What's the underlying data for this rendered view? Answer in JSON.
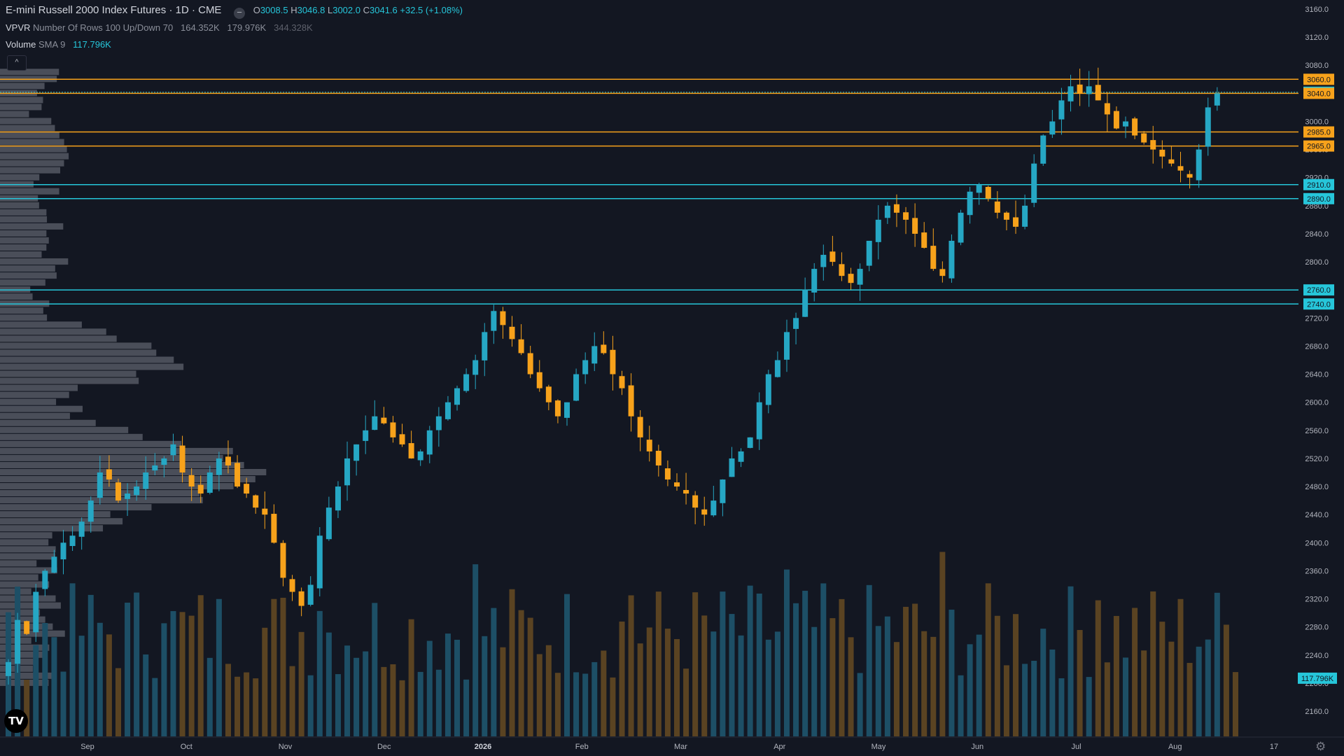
{
  "legend": {
    "title": "E-mini Russell 2000 Index Futures · 1D · CME",
    "o_label": "O",
    "o_value": "3008.5",
    "h_label": "H",
    "h_value": "3046.8",
    "l_label": "L",
    "l_value": "3002.0",
    "c_label": "C",
    "c_value": "3041.6",
    "change": "+32.5 (+1.08%)",
    "vpvr_name": "VPVR",
    "vpvr_params": "Number Of Rows 100 Up/Down 70",
    "vpvr_v1": "164.352K",
    "vpvr_v2": "179.976K",
    "vpvr_v3": "344.328K",
    "volume_name": "Volume",
    "volume_params": "SMA 9",
    "volume_value": "117.796K",
    "collapse_icon": "^"
  },
  "logo_text": "TV",
  "colors": {
    "background": "#131722",
    "up": "#26a7c4",
    "down": "#f7a21b",
    "cyan_level": "#26c6da",
    "orange_level": "#f7a21b",
    "vol_up": "#1d4f66",
    "vol_down": "#5a4322",
    "vpvr": "#787b86"
  },
  "chart_data": {
    "type": "candlestick",
    "symbol": "E-mini Russell 2000 Index Futures",
    "interval": "1D",
    "y_ticks": [
      "3160.0",
      "3120.0",
      "3080.0",
      "3040.0",
      "3000.0",
      "2960.0",
      "2920.0",
      "2880.0",
      "2840.0",
      "2800.0",
      "2760.0",
      "2720.0",
      "2680.0",
      "2640.0",
      "2600.0",
      "2560.0",
      "2520.0",
      "2480.0",
      "2440.0",
      "2400.0",
      "2360.0",
      "2320.0",
      "2280.0",
      "2240.0",
      "2200.0",
      "2160.0"
    ],
    "x_ticks": [
      "Sep",
      "Oct",
      "Nov",
      "Dec",
      "2026",
      "Feb",
      "Mar",
      "Apr",
      "May",
      "Jun",
      "Jul",
      "Aug",
      "17"
    ],
    "ylim": [
      2120,
      3175
    ],
    "price_levels": [
      {
        "price": 3060.0,
        "label": "3060.0",
        "color": "orange"
      },
      {
        "price": 3041.6,
        "label": "3041.6",
        "color": "cyan",
        "current": true
      },
      {
        "price": 3040.0,
        "label": "3040.0",
        "color": "orange"
      },
      {
        "price": 2985.0,
        "label": "2985.0",
        "color": "orange"
      },
      {
        "price": 2965.0,
        "label": "2965.0",
        "color": "orange"
      },
      {
        "price": 2910.0,
        "label": "2910.0",
        "color": "cyan"
      },
      {
        "price": 2890.0,
        "label": "2890.0",
        "color": "cyan"
      },
      {
        "price": 2760.0,
        "label": "2760.0",
        "color": "cyan"
      },
      {
        "price": 2740.0,
        "label": "2740.0",
        "color": "cyan"
      }
    ],
    "volume_sma_label": "117.796K",
    "volume_sma_price": 2207,
    "close_path": [
      2230,
      2290,
      2270,
      2330,
      2360,
      2380,
      2400,
      2410,
      2430,
      2460,
      2500,
      2490,
      2460,
      2470,
      2480,
      2500,
      2510,
      2520,
      2540,
      2500,
      2480,
      2470,
      2500,
      2520,
      2510,
      2480,
      2470,
      2450,
      2440,
      2400,
      2350,
      2330,
      2310,
      2340,
      2410,
      2450,
      2480,
      2520,
      2540,
      2560,
      2580,
      2570,
      2550,
      2540,
      2520,
      2530,
      2560,
      2580,
      2600,
      2620,
      2640,
      2660,
      2700,
      2730,
      2710,
      2690,
      2670,
      2640,
      2620,
      2600,
      2580,
      2600,
      2640,
      2660,
      2680,
      2670,
      2640,
      2620,
      2580,
      2550,
      2530,
      2510,
      2490,
      2480,
      2470,
      2450,
      2440,
      2460,
      2490,
      2520,
      2530,
      2550,
      2600,
      2640,
      2660,
      2700,
      2720,
      2760,
      2790,
      2810,
      2800,
      2780,
      2770,
      2790,
      2830,
      2860,
      2880,
      2870,
      2860,
      2840,
      2820,
      2790,
      2780,
      2830,
      2870,
      2900,
      2910,
      2890,
      2870,
      2860,
      2850,
      2880,
      2940,
      2980,
      3000,
      3030,
      3050,
      3040,
      3050,
      3030,
      3010,
      2990,
      3000,
      2980,
      2970,
      2960,
      2950,
      2940,
      2930,
      2920,
      2960,
      3020,
      3040
    ],
    "bars": 135
  }
}
